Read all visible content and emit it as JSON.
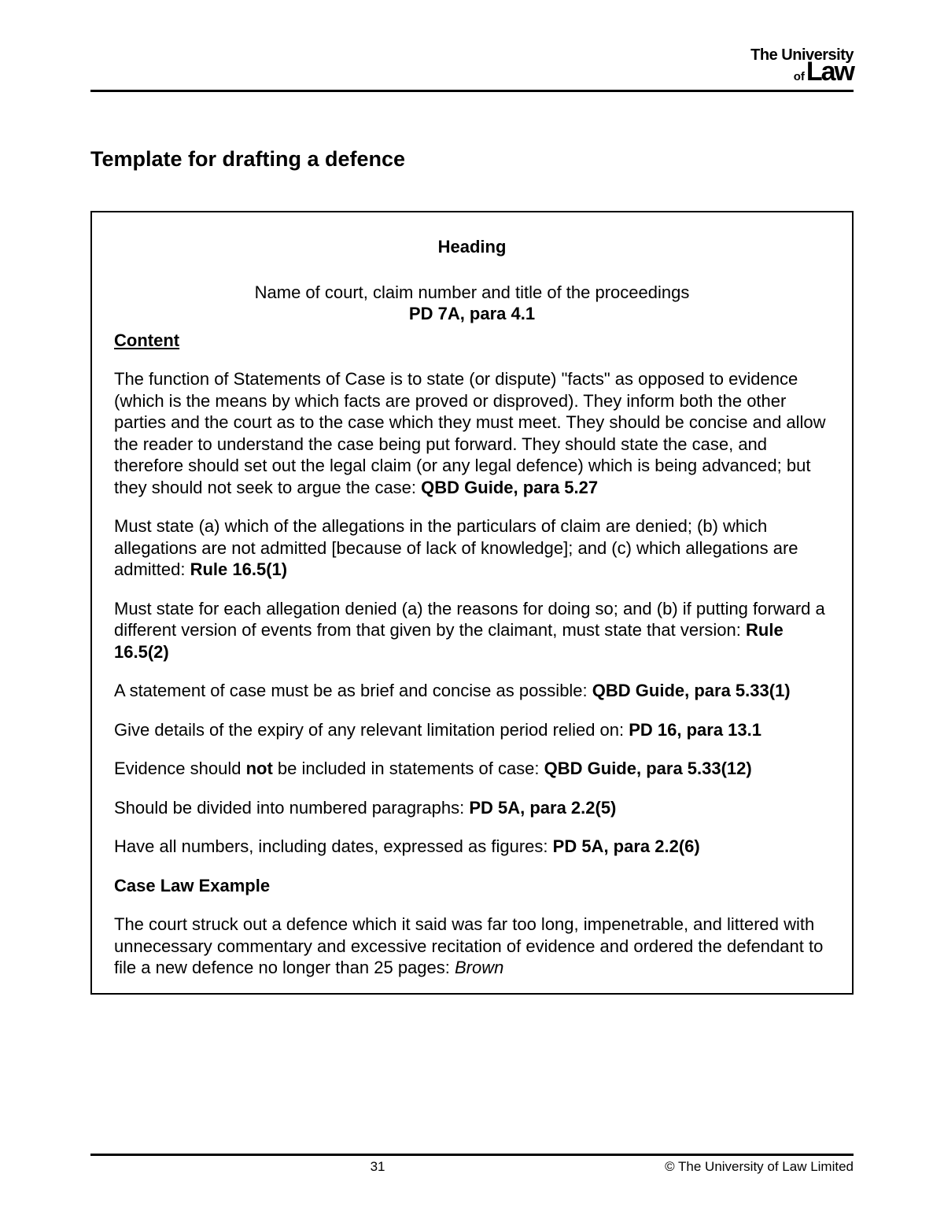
{
  "colors": {
    "text": "#000000",
    "background": "#ffffff",
    "rule": "#000000",
    "box_border": "#000000"
  },
  "typography": {
    "body_font": "Arial, Helvetica, sans-serif",
    "body_size_pt": 16,
    "title_size_pt": 20,
    "footer_size_pt": 12
  },
  "logo": {
    "line1": "The University",
    "of": "of",
    "law": "Law"
  },
  "title": "Template for drafting a defence",
  "box": {
    "heading_label": "Heading",
    "subheading_line": "Name of court, claim number and title of the proceedings",
    "subheading_ref": "PD 7A, para 4.1",
    "content_label": "Content",
    "p1_text": "The function of Statements of Case is to state (or dispute) \"facts\" as opposed to evidence (which is the means by which facts are proved or disproved). They inform both the other parties and the court as to the case which they must meet. They should be concise and allow the reader to understand the case being put forward. They should state the case, and therefore should set out the legal claim (or any legal defence) which is being advanced; but they should not seek to argue the case: ",
    "p1_ref": "QBD Guide, para 5.27",
    "p2_text": "Must state (a) which of the allegations in the particulars of claim are denied; (b) which allegations are not admitted [because of lack of knowledge]; and (c) which allegations are admitted: ",
    "p2_ref": "Rule 16.5(1)",
    "p3_text": "Must state for each allegation denied (a) the reasons for doing so; and (b) if putting forward a different version of events from that given by the claimant, must state that version: ",
    "p3_ref": "Rule 16.5(2)",
    "p4_text": "A statement of case must be as brief and concise as possible: ",
    "p4_ref": "QBD Guide, para 5.33(1)",
    "p5_text": "Give details of the expiry of any relevant limitation period relied on: ",
    "p5_ref": "PD 16, para 13.1",
    "p6_pre": "Evidence should ",
    "p6_not": "not",
    "p6_post": " be included in statements of case: ",
    "p6_ref": "QBD Guide, para 5.33(12)",
    "p7_text": "Should be divided into numbered paragraphs: ",
    "p7_ref": "PD 5A, para 2.2(5)",
    "p8_text": "Have all numbers, including dates, expressed as figures: ",
    "p8_ref": "PD 5A, para 2.2(6)",
    "case_law_label": "Case Law Example",
    "p9_text": "The court struck out a defence which it said was far too long, impenetrable, and littered with unnecessary commentary and excessive recitation of evidence and ordered the defendant to file a new defence no longer than 25 pages: ",
    "p9_case": "Brown"
  },
  "footer": {
    "page_number": "31",
    "copyright": "© The University of Law Limited"
  }
}
